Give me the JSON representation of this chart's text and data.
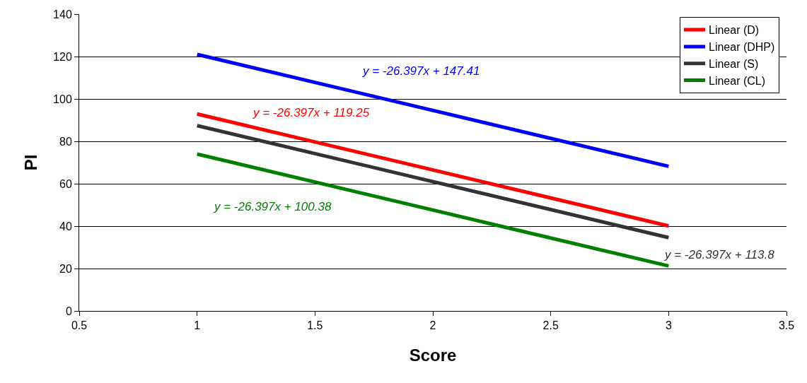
{
  "chart_data": {
    "type": "line",
    "xlabel": "Score",
    "ylabel": "PI",
    "series": [
      {
        "name": "Linear (D)",
        "color": "#ff0000",
        "values": [
          92.9,
          40.1
        ]
      },
      {
        "name": "Linear (DHP)",
        "color": "#0000ff",
        "values": [
          121.0,
          68.2
        ]
      },
      {
        "name": "Linear (S)",
        "color": "#333333",
        "values": [
          87.4,
          34.6
        ]
      },
      {
        "name": "Linear (CL)",
        "color": "#008000",
        "values": [
          74.0,
          21.2
        ]
      }
    ],
    "x": [
      1,
      3
    ],
    "annotations": [
      "y = -26.397x + 119.25",
      "y = -26.397x + 147.41",
      "y = -26.397x + 113.8",
      "y = -26.397x + 100.38"
    ],
    "xlim": [
      0.5,
      3.5
    ],
    "xticks": [
      0.5,
      1,
      1.5,
      2,
      2.5,
      3,
      3.5
    ],
    "ylim": [
      0,
      140
    ],
    "yticks": [
      0,
      20,
      40,
      60,
      80,
      100,
      120,
      140
    ],
    "grid": "y",
    "legend": "top right",
    "marker": "none",
    "line_style": "solid"
  }
}
